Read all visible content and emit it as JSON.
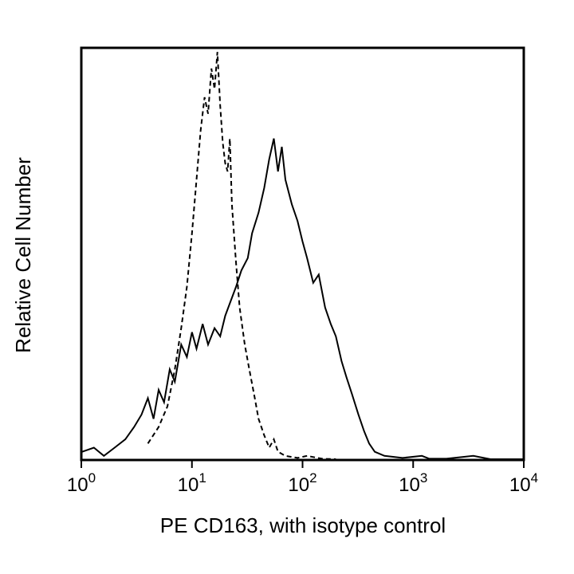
{
  "chart_data": {
    "type": "line",
    "title": "",
    "xlabel": "PE CD163, with isotype control",
    "ylabel": "Relative Cell Number",
    "xscale": "log",
    "xlim": [
      1,
      10000
    ],
    "ylim": [
      0,
      100
    ],
    "grid": false,
    "legend": "none",
    "xticks": [
      {
        "base": "10",
        "exp": "0",
        "value": 1
      },
      {
        "base": "10",
        "exp": "1",
        "value": 10
      },
      {
        "base": "10",
        "exp": "2",
        "value": 100
      },
      {
        "base": "10",
        "exp": "3",
        "value": 1000
      },
      {
        "base": "10",
        "exp": "4",
        "value": 10000
      }
    ],
    "series": [
      {
        "style": "solid",
        "color": "#000000",
        "points": [
          [
            1.0,
            2
          ],
          [
            1.3,
            3
          ],
          [
            1.6,
            1
          ],
          [
            2.0,
            3
          ],
          [
            2.5,
            5
          ],
          [
            3.0,
            8
          ],
          [
            3.5,
            11
          ],
          [
            4.0,
            15
          ],
          [
            4.5,
            10
          ],
          [
            5.0,
            17
          ],
          [
            5.6,
            14
          ],
          [
            6.3,
            22
          ],
          [
            7.0,
            19
          ],
          [
            8.0,
            28
          ],
          [
            9.0,
            25
          ],
          [
            10.0,
            31
          ],
          [
            11.0,
            27
          ],
          [
            12.5,
            33
          ],
          [
            14.0,
            28
          ],
          [
            16.0,
            32
          ],
          [
            18.0,
            30
          ],
          [
            20.0,
            35
          ],
          [
            22.0,
            38
          ],
          [
            25.0,
            42
          ],
          [
            28.0,
            46
          ],
          [
            32.0,
            49
          ],
          [
            35.0,
            55
          ],
          [
            40.0,
            60
          ],
          [
            45.0,
            66
          ],
          [
            50.0,
            73
          ],
          [
            55.0,
            78
          ],
          [
            60.0,
            70
          ],
          [
            65.0,
            76
          ],
          [
            70.0,
            68
          ],
          [
            80.0,
            62
          ],
          [
            90.0,
            58
          ],
          [
            100.0,
            53
          ],
          [
            110.0,
            49
          ],
          [
            125.0,
            43
          ],
          [
            140.0,
            45
          ],
          [
            160.0,
            37
          ],
          [
            180.0,
            33
          ],
          [
            200.0,
            30
          ],
          [
            225.0,
            24
          ],
          [
            250.0,
            20
          ],
          [
            280.0,
            16
          ],
          [
            320.0,
            11
          ],
          [
            360.0,
            7
          ],
          [
            400.0,
            4
          ],
          [
            450.0,
            2
          ],
          [
            550.0,
            1
          ],
          [
            800.0,
            0.5
          ],
          [
            1200.0,
            1
          ],
          [
            1400.0,
            0.3
          ],
          [
            2000.0,
            0.3
          ],
          [
            3500.0,
            1
          ],
          [
            5000.0,
            0.2
          ],
          [
            10000.0,
            0.2
          ]
        ]
      },
      {
        "style": "dashed",
        "color": "#000000",
        "points": [
          [
            4.0,
            4
          ],
          [
            5.0,
            8
          ],
          [
            6.0,
            13
          ],
          [
            7.0,
            22
          ],
          [
            8.0,
            32
          ],
          [
            9.0,
            42
          ],
          [
            10.0,
            55
          ],
          [
            11.0,
            68
          ],
          [
            12.0,
            80
          ],
          [
            13.0,
            88
          ],
          [
            14.0,
            84
          ],
          [
            15.0,
            95
          ],
          [
            16.0,
            90
          ],
          [
            17.0,
            99
          ],
          [
            18.0,
            86
          ],
          [
            19.0,
            77
          ],
          [
            20.0,
            72
          ],
          [
            21.0,
            70
          ],
          [
            22.0,
            78
          ],
          [
            23.0,
            62
          ],
          [
            25.0,
            48
          ],
          [
            27.0,
            37
          ],
          [
            30.0,
            28
          ],
          [
            33.0,
            22
          ],
          [
            37.0,
            15
          ],
          [
            40.0,
            10
          ],
          [
            45.0,
            6
          ],
          [
            50.0,
            3
          ],
          [
            55.0,
            5
          ],
          [
            60.0,
            2
          ],
          [
            70.0,
            1
          ],
          [
            90.0,
            0.5
          ],
          [
            110.0,
            1
          ],
          [
            150.0,
            0.3
          ],
          [
            200.0,
            0.2
          ]
        ]
      }
    ]
  }
}
